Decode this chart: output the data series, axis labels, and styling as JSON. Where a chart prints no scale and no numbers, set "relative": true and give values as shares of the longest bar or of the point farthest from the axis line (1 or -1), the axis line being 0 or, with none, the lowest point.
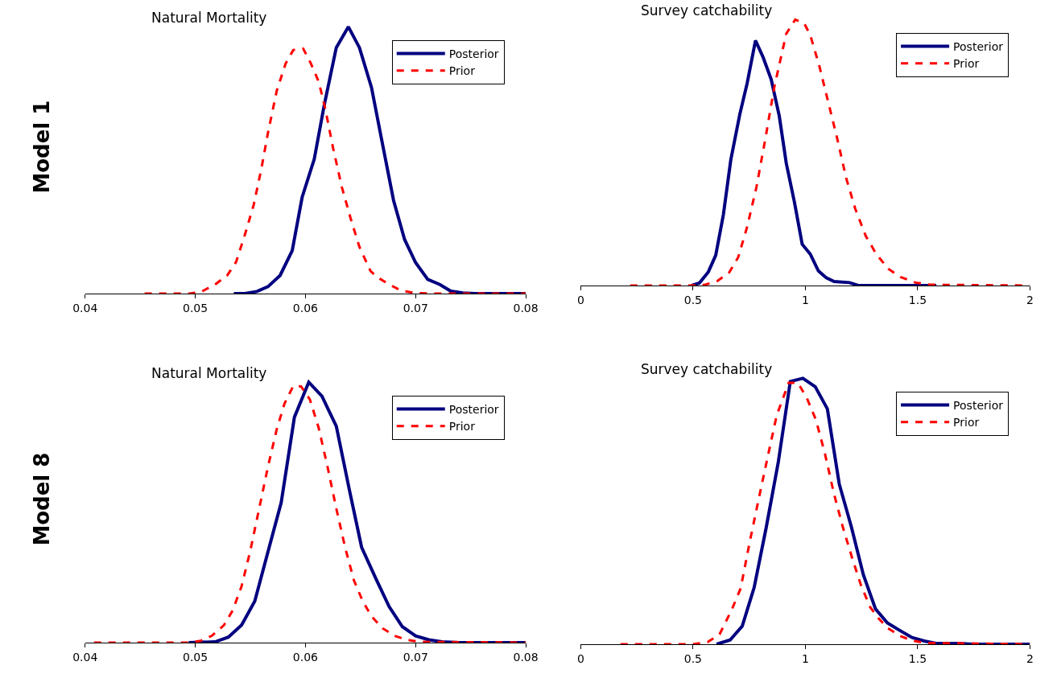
{
  "chart_data": [
    {
      "type": "line",
      "title": "Natural Mortality",
      "annotations": [
        "Model 1"
      ],
      "relative": true,
      "legend": "top right",
      "xlim": [
        0.04,
        0.08
      ],
      "xticks": [
        0.04,
        0.05,
        0.06,
        0.07,
        0.08
      ],
      "series": [
        {
          "name": "Posterior",
          "color": "#000080",
          "line_style": "solid",
          "x": [
            0.0535,
            0.0545,
            0.0556,
            0.0566,
            0.0577,
            0.0588,
            0.0597,
            0.0608,
            0.0617,
            0.0628,
            0.0639,
            0.0649,
            0.066,
            0.0669,
            0.068,
            0.069,
            0.07,
            0.0711,
            0.0722,
            0.0732,
            0.0743,
            0.0754,
            0.08
          ],
          "values": [
            0,
            0,
            0.008,
            0.026,
            0.068,
            0.161,
            0.361,
            0.504,
            0.705,
            0.922,
            1,
            0.922,
            0.772,
            0.581,
            0.349,
            0.203,
            0.116,
            0.053,
            0.034,
            0.009,
            0.002,
            0,
            0
          ]
        },
        {
          "name": "Prior",
          "color": "#ff0000",
          "line_style": "dashed",
          "x": [
            0.0454,
            0.0467,
            0.048,
            0.0495,
            0.0505,
            0.0518,
            0.0529,
            0.0537,
            0.0545,
            0.0553,
            0.056,
            0.0566,
            0.0574,
            0.0582,
            0.0589,
            0.0598,
            0.0605,
            0.0612,
            0.0618,
            0.0625,
            0.0633,
            0.0641,
            0.0649,
            0.0659,
            0.0665,
            0.0676,
            0.0687,
            0.07,
            0.0714,
            0.08
          ],
          "values": [
            0,
            0,
            0,
            0,
            0.006,
            0.034,
            0.068,
            0.118,
            0.22,
            0.332,
            0.468,
            0.603,
            0.761,
            0.862,
            0.913,
            0.918,
            0.862,
            0.795,
            0.693,
            0.547,
            0.4,
            0.282,
            0.175,
            0.085,
            0.062,
            0.034,
            0.011,
            0.002,
            0,
            0
          ]
        }
      ]
    },
    {
      "type": "line",
      "title": "Survey catchability",
      "relative": true,
      "legend": "top right",
      "xlim": [
        0,
        2
      ],
      "xticks": [
        0,
        0.5,
        1,
        1.5,
        2
      ],
      "series": [
        {
          "name": "Posterior",
          "color": "#000080",
          "line_style": "solid",
          "x": [
            0.494,
            0.528,
            0.568,
            0.601,
            0.635,
            0.668,
            0.708,
            0.741,
            0.778,
            0.812,
            0.848,
            0.884,
            0.915,
            0.951,
            0.986,
            1.022,
            1.058,
            1.093,
            1.128,
            1.196,
            1.236,
            1.583
          ],
          "values": [
            0,
            0.009,
            0.051,
            0.114,
            0.266,
            0.472,
            0.643,
            0.761,
            0.921,
            0.858,
            0.775,
            0.637,
            0.46,
            0.315,
            0.155,
            0.118,
            0.055,
            0.029,
            0.015,
            0.011,
            0,
            0
          ]
        },
        {
          "name": "Prior",
          "color": "#ff0000",
          "line_style": "dashed",
          "x": [
            0.22,
            0.488,
            0.554,
            0.608,
            0.661,
            0.701,
            0.741,
            0.782,
            0.822,
            0.862,
            0.915,
            0.955,
            0.995,
            1.022,
            1.062,
            1.102,
            1.142,
            1.182,
            1.222,
            1.269,
            1.316,
            1.369,
            1.423,
            1.49,
            1.556,
            2
          ],
          "values": [
            0,
            0,
            0.003,
            0.017,
            0.049,
            0.106,
            0.221,
            0.369,
            0.552,
            0.747,
            0.947,
            1,
            0.986,
            0.941,
            0.826,
            0.689,
            0.552,
            0.403,
            0.289,
            0.186,
            0.118,
            0.063,
            0.032,
            0.011,
            0.003,
            0
          ]
        }
      ]
    },
    {
      "type": "line",
      "title": "Natural Mortality",
      "annotations": [
        "Model 8"
      ],
      "relative": true,
      "legend": "top right",
      "xlim": [
        0.04,
        0.08
      ],
      "xticks": [
        0.04,
        0.05,
        0.06,
        0.07,
        0.08
      ],
      "series": [
        {
          "name": "Posterior",
          "color": "#000080",
          "line_style": "solid",
          "x": [
            0.0494,
            0.0518,
            0.053,
            0.0542,
            0.0554,
            0.0566,
            0.0578,
            0.059,
            0.0603,
            0.0615,
            0.0628,
            0.064,
            0.0651,
            0.0664,
            0.0676,
            0.0688,
            0.07,
            0.0712,
            0.0724,
            0.074,
            0.08
          ],
          "values": [
            0,
            0.003,
            0.021,
            0.067,
            0.159,
            0.349,
            0.538,
            0.866,
            1,
            0.946,
            0.831,
            0.584,
            0.366,
            0.245,
            0.138,
            0.061,
            0.026,
            0.011,
            0.003,
            0,
            0
          ]
        },
        {
          "name": "Prior",
          "color": "#ff0000",
          "line_style": "dashed",
          "x": [
            0.0408,
            0.0494,
            0.0505,
            0.0515,
            0.0526,
            0.0534,
            0.0542,
            0.055,
            0.0558,
            0.0566,
            0.0574,
            0.0581,
            0.0589,
            0.0596,
            0.0604,
            0.0612,
            0.062,
            0.0628,
            0.0636,
            0.0644,
            0.0652,
            0.066,
            0.067,
            0.0681,
            0.0692,
            0.0703,
            0.08
          ],
          "values": [
            0,
            0,
            0.007,
            0.026,
            0.067,
            0.124,
            0.216,
            0.354,
            0.515,
            0.676,
            0.82,
            0.918,
            0.986,
            0.984,
            0.934,
            0.825,
            0.676,
            0.515,
            0.366,
            0.239,
            0.159,
            0.101,
            0.055,
            0.026,
            0.011,
            0.003,
            0
          ]
        }
      ]
    },
    {
      "type": "line",
      "title": "Survey catchability",
      "relative": true,
      "legend": "top right",
      "xlim": [
        0,
        2
      ],
      "xticks": [
        0,
        0.5,
        1,
        1.5,
        2
      ],
      "series": [
        {
          "name": "Posterior",
          "color": "#000080",
          "line_style": "solid",
          "x": [
            0.605,
            0.665,
            0.719,
            0.772,
            0.826,
            0.879,
            0.933,
            0.989,
            1.044,
            1.098,
            1.151,
            1.205,
            1.258,
            1.312,
            1.365,
            1.422,
            1.475,
            1.529,
            1.582,
            1.689,
            1.743,
            2
          ],
          "values": [
            0,
            0.016,
            0.068,
            0.213,
            0.44,
            0.682,
            0.988,
            1,
            0.968,
            0.885,
            0.602,
            0.441,
            0.262,
            0.133,
            0.08,
            0.051,
            0.025,
            0.012,
            0.003,
            0.003,
            0,
            0
          ]
        },
        {
          "name": "Prior",
          "color": "#ff0000",
          "line_style": "dashed",
          "x": [
            0.177,
            0.498,
            0.565,
            0.618,
            0.672,
            0.712,
            0.752,
            0.792,
            0.833,
            0.873,
            0.926,
            0.967,
            1.007,
            1.047,
            1.087,
            1.127,
            1.167,
            1.208,
            1.248,
            1.288,
            1.328,
            1.368,
            1.422,
            1.475,
            1.529,
            2
          ],
          "values": [
            0,
            0,
            0.008,
            0.037,
            0.129,
            0.21,
            0.383,
            0.545,
            0.707,
            0.862,
            0.983,
            0.983,
            0.925,
            0.844,
            0.717,
            0.567,
            0.44,
            0.325,
            0.221,
            0.14,
            0.095,
            0.06,
            0.031,
            0.014,
            0.005,
            0
          ]
        }
      ]
    }
  ]
}
